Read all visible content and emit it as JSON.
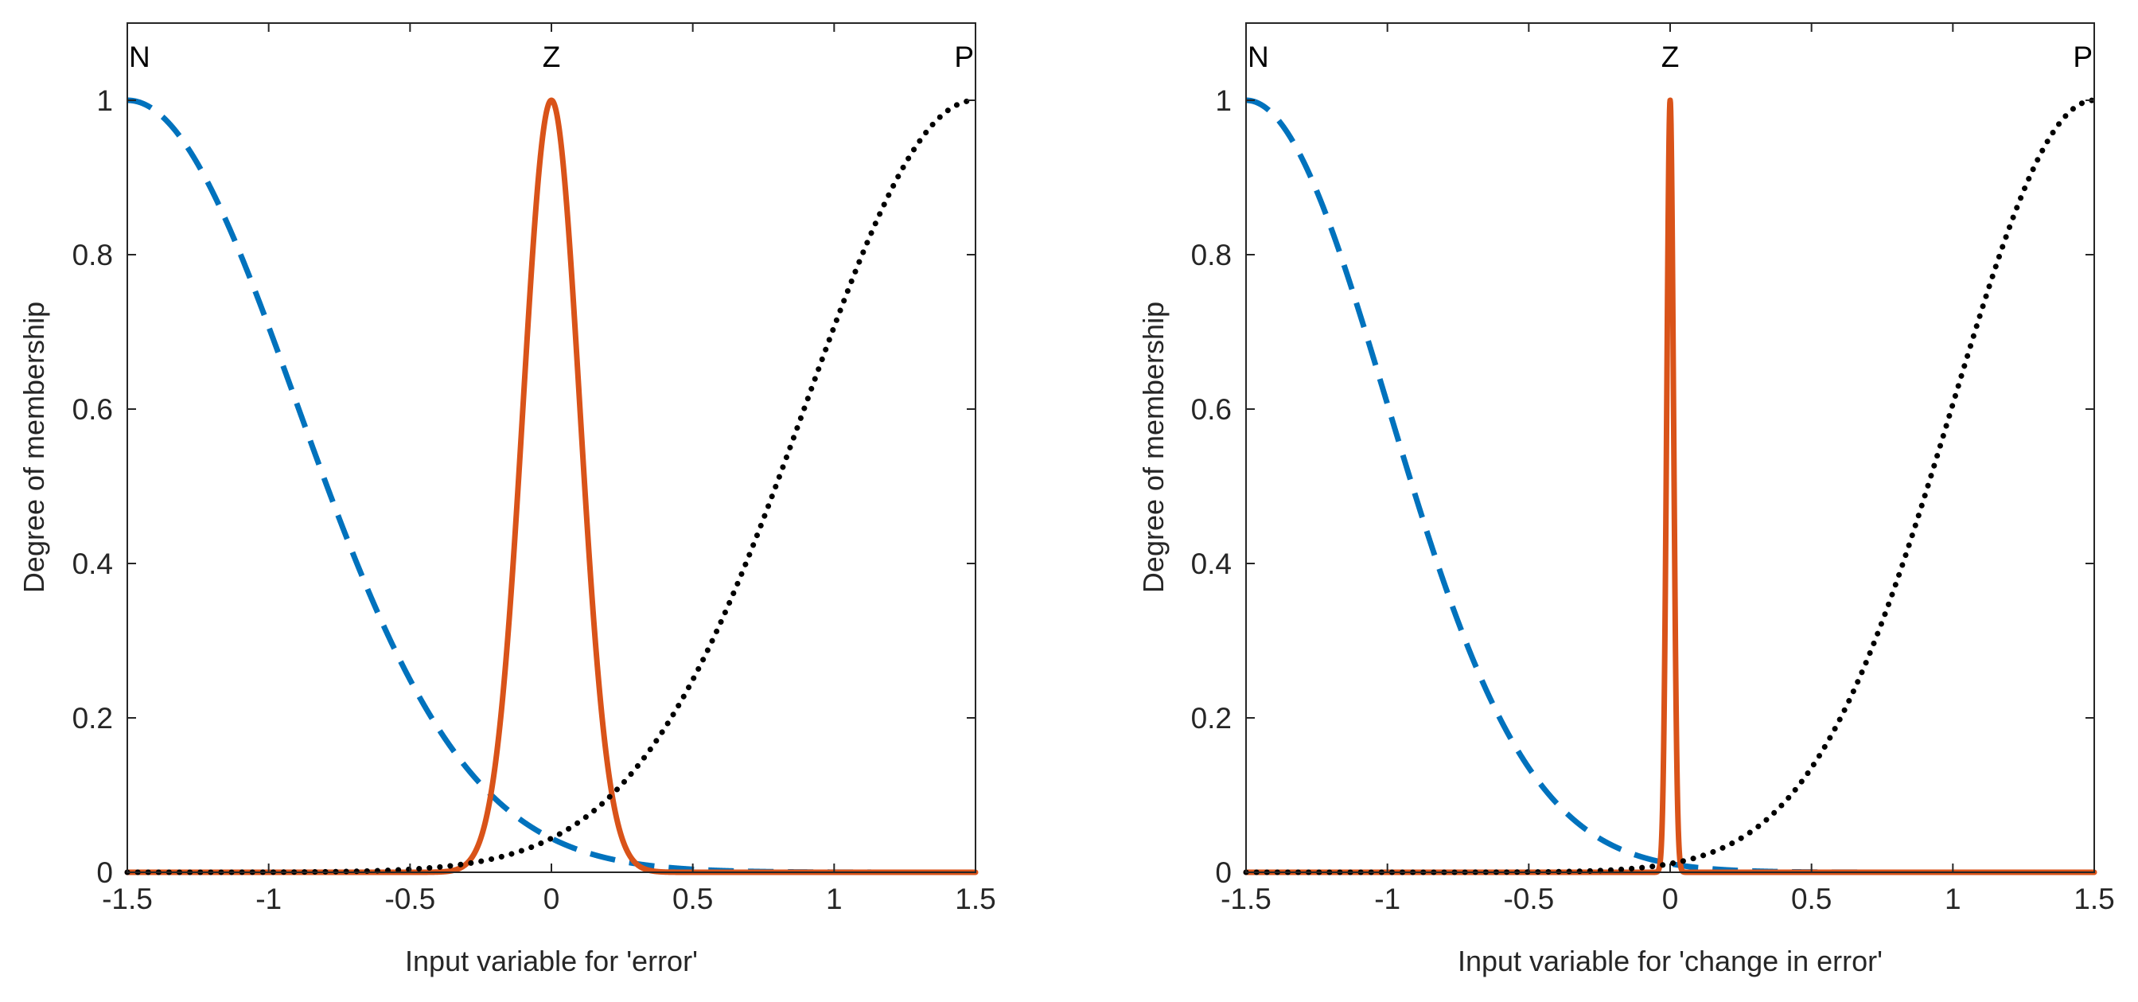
{
  "chart_data": [
    {
      "type": "line",
      "id": "error",
      "xlabel": "Input variable for 'error'",
      "ylabel": "Degree of membership",
      "xlim": [
        -1.5,
        1.5
      ],
      "ylim": [
        0,
        1.1
      ],
      "xticks": [
        "-1.5",
        "-1",
        "-0.5",
        "0",
        "0.5",
        "1",
        "1.5"
      ],
      "yticks": [
        "0",
        "0.2",
        "0.4",
        "0.6",
        "0.8",
        "1"
      ],
      "grid": false,
      "mf_labels": [
        {
          "text": "N",
          "x": -1.5
        },
        {
          "text": "Z",
          "x": 0
        },
        {
          "text": "P",
          "x": 1.5
        }
      ],
      "series": [
        {
          "name": "N",
          "shape": "gaussian",
          "center": -1.5,
          "sigma": 0.6,
          "style": "dashed",
          "color": "#0072BD"
        },
        {
          "name": "Z",
          "shape": "gaussian",
          "center": 0,
          "sigma": 0.1,
          "style": "solid",
          "color": "#D95319"
        },
        {
          "name": "P",
          "shape": "gaussian",
          "center": 1.5,
          "sigma": 0.6,
          "style": "dotted",
          "color": "#000000"
        }
      ]
    },
    {
      "type": "line",
      "id": "change-in-error",
      "xlabel": "Input variable for 'change in error'",
      "ylabel": "Degree of membership",
      "xlim": [
        -1.5,
        1.5
      ],
      "ylim": [
        0,
        1.1
      ],
      "xticks": [
        "-1.5",
        "-1",
        "-0.5",
        "0",
        "0.5",
        "1",
        "1.5"
      ],
      "yticks": [
        "0",
        "0.2",
        "0.4",
        "0.6",
        "0.8",
        "1"
      ],
      "grid": false,
      "mf_labels": [
        {
          "text": "N",
          "x": -1.5
        },
        {
          "text": "Z",
          "x": 0
        },
        {
          "text": "P",
          "x": 1.5
        }
      ],
      "series": [
        {
          "name": "N",
          "shape": "gaussian",
          "center": -1.5,
          "sigma": 0.5,
          "style": "dashed",
          "color": "#0072BD"
        },
        {
          "name": "Z",
          "shape": "gaussian",
          "center": 0,
          "sigma": 0.012,
          "style": "solid",
          "color": "#D95319"
        },
        {
          "name": "P",
          "shape": "gaussian",
          "center": 1.5,
          "sigma": 0.5,
          "style": "dotted",
          "color": "#000000"
        }
      ]
    }
  ]
}
